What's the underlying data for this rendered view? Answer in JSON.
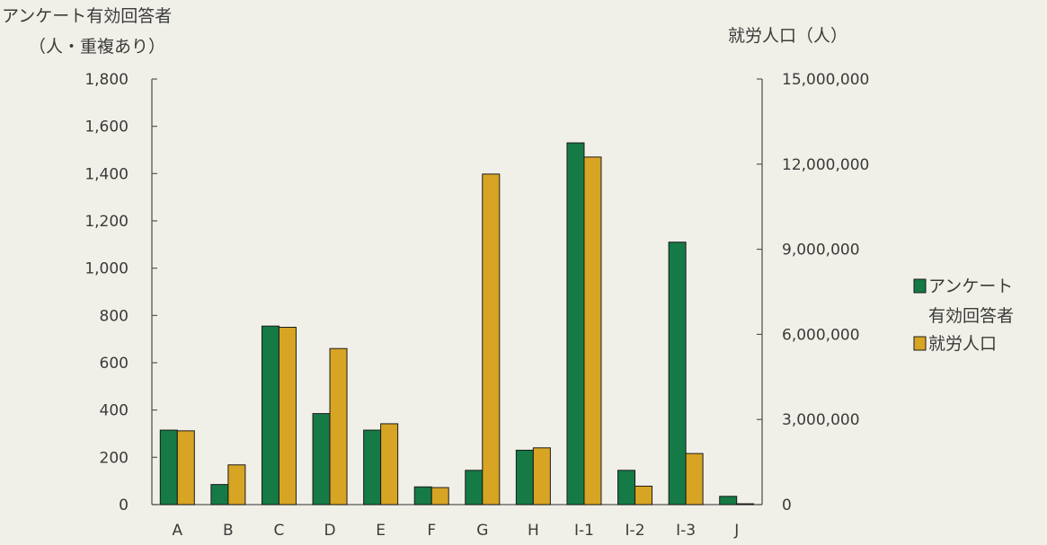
{
  "chart_data": {
    "type": "bar",
    "categories": [
      "A",
      "B",
      "C",
      "D",
      "E",
      "F",
      "G",
      "H",
      "I-1",
      "I-2",
      "I-3",
      "J"
    ],
    "series": [
      {
        "name": "アンケート有効回答者",
        "axis": "left",
        "color": "#157a45",
        "values": [
          315,
          85,
          755,
          385,
          315,
          75,
          145,
          230,
          1530,
          145,
          1110,
          35
        ]
      },
      {
        "name": "就労人口",
        "axis": "right",
        "color": "#d8a424",
        "values": [
          2600000,
          1400000,
          6250000,
          5500000,
          2850000,
          600000,
          11650000,
          2000000,
          12250000,
          650000,
          1800000,
          30000
        ]
      }
    ],
    "y_left": {
      "title_lines": [
        "アンケート有効回答者",
        "（人・重複あり）"
      ],
      "ylim": [
        0,
        1800
      ],
      "ticks": [
        0,
        200,
        400,
        600,
        800,
        1000,
        1200,
        1400,
        1600,
        1800
      ],
      "tick_labels": [
        "0",
        "200",
        "400",
        "600",
        "800",
        "1,000",
        "1,200",
        "1,400",
        "1,600",
        "1,800"
      ]
    },
    "y_right": {
      "title": "就労人口（人）",
      "ylim": [
        0,
        15000000
      ],
      "ticks": [
        0,
        3000000,
        6000000,
        9000000,
        12000000,
        15000000
      ],
      "tick_labels": [
        "0",
        "3,000,000",
        "6,000,000",
        "9,000,000",
        "12,000,000",
        "15,000,000"
      ]
    },
    "legend": {
      "position": "right",
      "entries": [
        {
          "lines": [
            "アンケート",
            "有効回答者"
          ],
          "color": "#157a45"
        },
        {
          "lines": [
            "就労人口"
          ],
          "color": "#d8a424"
        }
      ]
    },
    "grid": false
  }
}
